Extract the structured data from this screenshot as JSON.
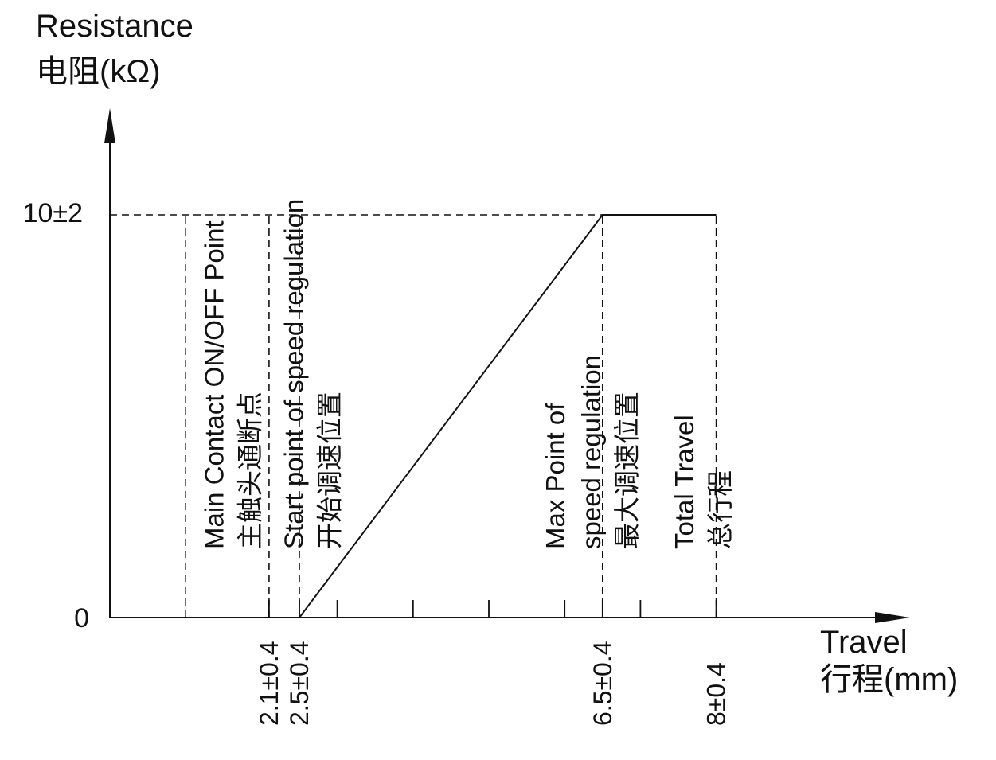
{
  "chart_data": {
    "type": "line",
    "title": "",
    "ylabel_lines": [
      "Resistance",
      "电阻(kΩ)"
    ],
    "xlabel_lines": [
      "Travel",
      "行程(mm)"
    ],
    "y_ticks": [
      {
        "value": 0,
        "label": "0"
      },
      {
        "value": 10,
        "label": "10±2"
      }
    ],
    "x_ticks": [
      {
        "value": 2.1,
        "label": "2.1±0.4"
      },
      {
        "value": 2.5,
        "label": "2.5±0.4"
      },
      {
        "value": 6.5,
        "label": "6.5±0.4"
      },
      {
        "value": 8,
        "label": "8±0.4"
      }
    ],
    "minor_x_ticks": [
      3,
      4,
      5,
      6,
      7
    ],
    "xlim": [
      0,
      10.5
    ],
    "ylim": [
      0,
      12.5
    ],
    "series": [
      {
        "x": [
          2.5,
          6.5,
          8
        ],
        "y": [
          0,
          10,
          10
        ]
      }
    ],
    "reference_lines": [
      1,
      2.1,
      2.5,
      6.5,
      8
    ],
    "annotations": [
      {
        "x": 1.1,
        "lines": [
          "Main Contact ON/OFF Point",
          "主触头通断点"
        ]
      },
      {
        "x": 2.15,
        "lines": [
          "Start point of speed regulation",
          "开始调速位置"
        ]
      },
      {
        "x": 5.6,
        "lines": [
          "Max Point of",
          "speed regulation",
          "最大调速位置"
        ]
      },
      {
        "x": 7.3,
        "lines": [
          "Total Travel",
          "总行程"
        ]
      }
    ],
    "grid": false,
    "legend": "none"
  }
}
